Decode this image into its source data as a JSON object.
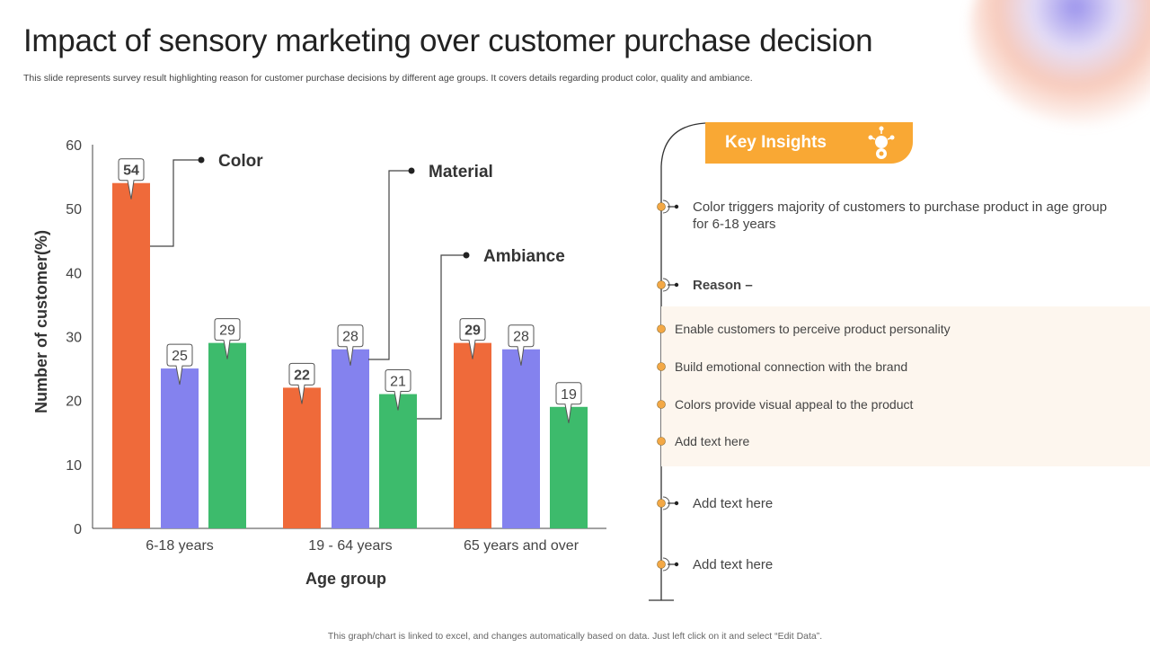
{
  "header": {
    "title": "Impact of sensory marketing over customer purchase decision",
    "subtitle": "This slide represents survey result highlighting reason for customer purchase decisions by different age groups. It covers details regarding product color, quality and ambiance."
  },
  "chart_data": {
    "type": "bar",
    "title": "",
    "xlabel": "Age group",
    "ylabel": "Number of customer(%)",
    "ylim": [
      0,
      60
    ],
    "yticks": [
      0,
      10,
      20,
      30,
      40,
      50,
      60
    ],
    "categories": [
      "6-18 years",
      "19 - 64 years",
      "65 years and over"
    ],
    "series": [
      {
        "name": "Color",
        "values": [
          54,
          22,
          29
        ],
        "color": "#ef6a3a"
      },
      {
        "name": "Material",
        "values": [
          25,
          28,
          28
        ],
        "color": "#8482ee"
      },
      {
        "name": "Ambiance",
        "values": [
          29,
          21,
          19
        ],
        "color": "#3dbb6c"
      }
    ],
    "legend": "callout annotations",
    "grid": false
  },
  "insights": {
    "title": "Key Insights",
    "icon": "lightbulb-gear-icon",
    "accent": "#f9a834",
    "point1": "Color triggers majority of customers to purchase product in age group for 6-18 years",
    "reason_label": "Reason –",
    "reasons": [
      "Enable customers to perceive product personality",
      "Build emotional connection with the brand",
      "Colors provide visual appeal to the product",
      "Add text here"
    ],
    "point3": "Add text here",
    "point4": "Add text here"
  },
  "footer": "This graph/chart is linked to excel,  and changes automatically based on data. Just left click on it and select “Edit Data”."
}
